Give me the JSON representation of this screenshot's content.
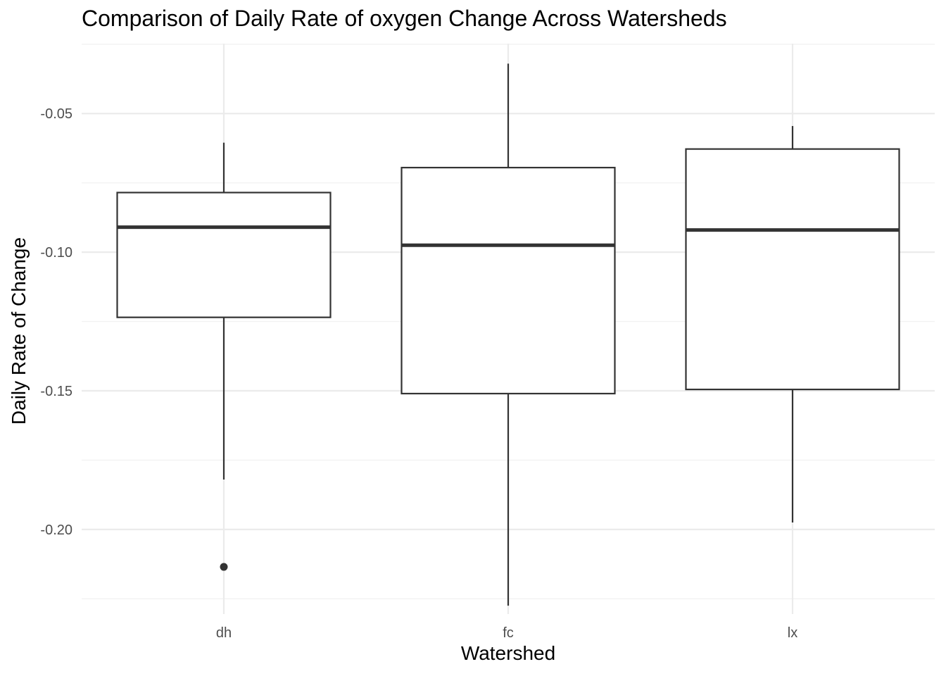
{
  "chart_data": {
    "type": "boxplot",
    "title": "Comparison of Daily Rate of oxygen Change Across Watersheds",
    "xlabel": "Watershed",
    "ylabel": "Daily Rate of Change",
    "categories": [
      "dh",
      "fc",
      "lx"
    ],
    "boxes": [
      {
        "category": "dh",
        "whisker_low": -0.182,
        "q1": -0.1235,
        "median": -0.091,
        "q3": -0.0785,
        "whisker_high": -0.0605,
        "outliers": [
          -0.2135
        ]
      },
      {
        "category": "fc",
        "whisker_low": -0.2275,
        "q1": -0.151,
        "median": -0.0975,
        "q3": -0.0695,
        "whisker_high": -0.032,
        "outliers": []
      },
      {
        "category": "lx",
        "whisker_low": -0.1975,
        "q1": -0.1495,
        "median": -0.092,
        "q3": -0.0628,
        "whisker_high": -0.0545,
        "outliers": []
      }
    ],
    "y_ticks": [
      -0.2,
      -0.15,
      -0.1,
      -0.05
    ],
    "y_tick_labels": [
      "-0.20",
      "-0.15",
      "-0.10",
      "-0.05"
    ],
    "ylim": [
      -0.2305,
      -0.0248
    ],
    "grid": true,
    "colors": {
      "box_fill": "#ffffff",
      "box_stroke": "#333333",
      "grid_major": "#ebebeb",
      "grid_minor": "#f2f2f2",
      "outlier": "#333333"
    }
  }
}
